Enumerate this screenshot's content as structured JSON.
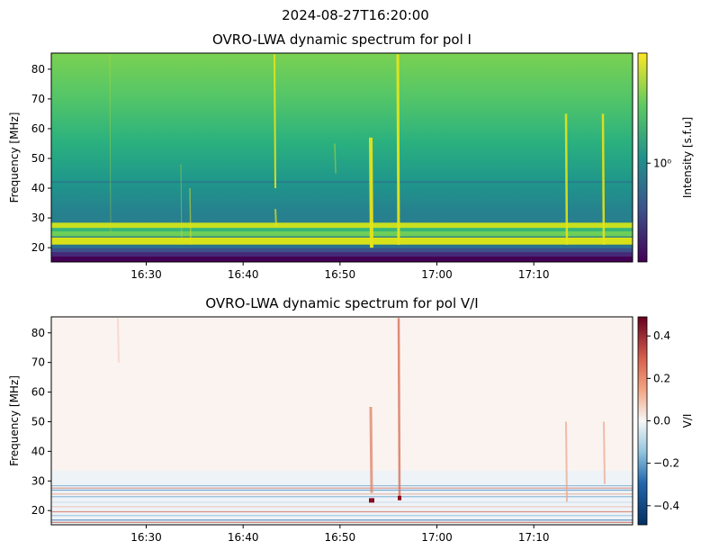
{
  "suptitle": "2024-08-27T16:20:00",
  "chart_data": [
    {
      "type": "heatmap",
      "title": "OVRO-LWA dynamic spectrum for pol I",
      "y_label": "Frequency [MHz]",
      "xlim": [
        980.2,
        1040.2
      ],
      "xticks": [
        {
          "value": 990,
          "label": "16:30"
        },
        {
          "value": 1000,
          "label": "16:40"
        },
        {
          "value": 1010,
          "label": "16:50"
        },
        {
          "value": 1020,
          "label": "17:00"
        },
        {
          "value": 1030,
          "label": "17:10"
        }
      ],
      "ylim": [
        15.2,
        85.4
      ],
      "yticks": [
        20,
        30,
        40,
        50,
        60,
        70,
        80
      ],
      "colorbar": {
        "label": "Intensity [s.f.u]",
        "scale": "log",
        "colormap": "viridis",
        "lim": [
          0.27,
          4.3
        ],
        "ticks": [
          {
            "value": 1,
            "label": "10⁰"
          }
        ]
      }
    },
    {
      "type": "heatmap",
      "title": "OVRO-LWA dynamic spectrum for pol V/I",
      "y_label": "Frequency [MHz]",
      "xlim": [
        980.2,
        1040.2
      ],
      "xticks": [
        {
          "value": 990,
          "label": "16:30"
        },
        {
          "value": 1000,
          "label": "16:40"
        },
        {
          "value": 1010,
          "label": "16:50"
        },
        {
          "value": 1020,
          "label": "17:00"
        },
        {
          "value": 1030,
          "label": "17:10"
        }
      ],
      "ylim": [
        15.2,
        85.4
      ],
      "yticks": [
        20,
        30,
        40,
        50,
        60,
        70,
        80
      ],
      "colorbar": {
        "label": "V/I",
        "scale": "linear",
        "colormap": "RdBu_r",
        "lim": [
          -0.49,
          0.49
        ],
        "ticks": [
          {
            "value": -0.4,
            "label": "−0.4"
          },
          {
            "value": -0.2,
            "label": "−0.2"
          },
          {
            "value": 0,
            "label": "0.0"
          },
          0.2,
          0.4
        ]
      }
    }
  ]
}
